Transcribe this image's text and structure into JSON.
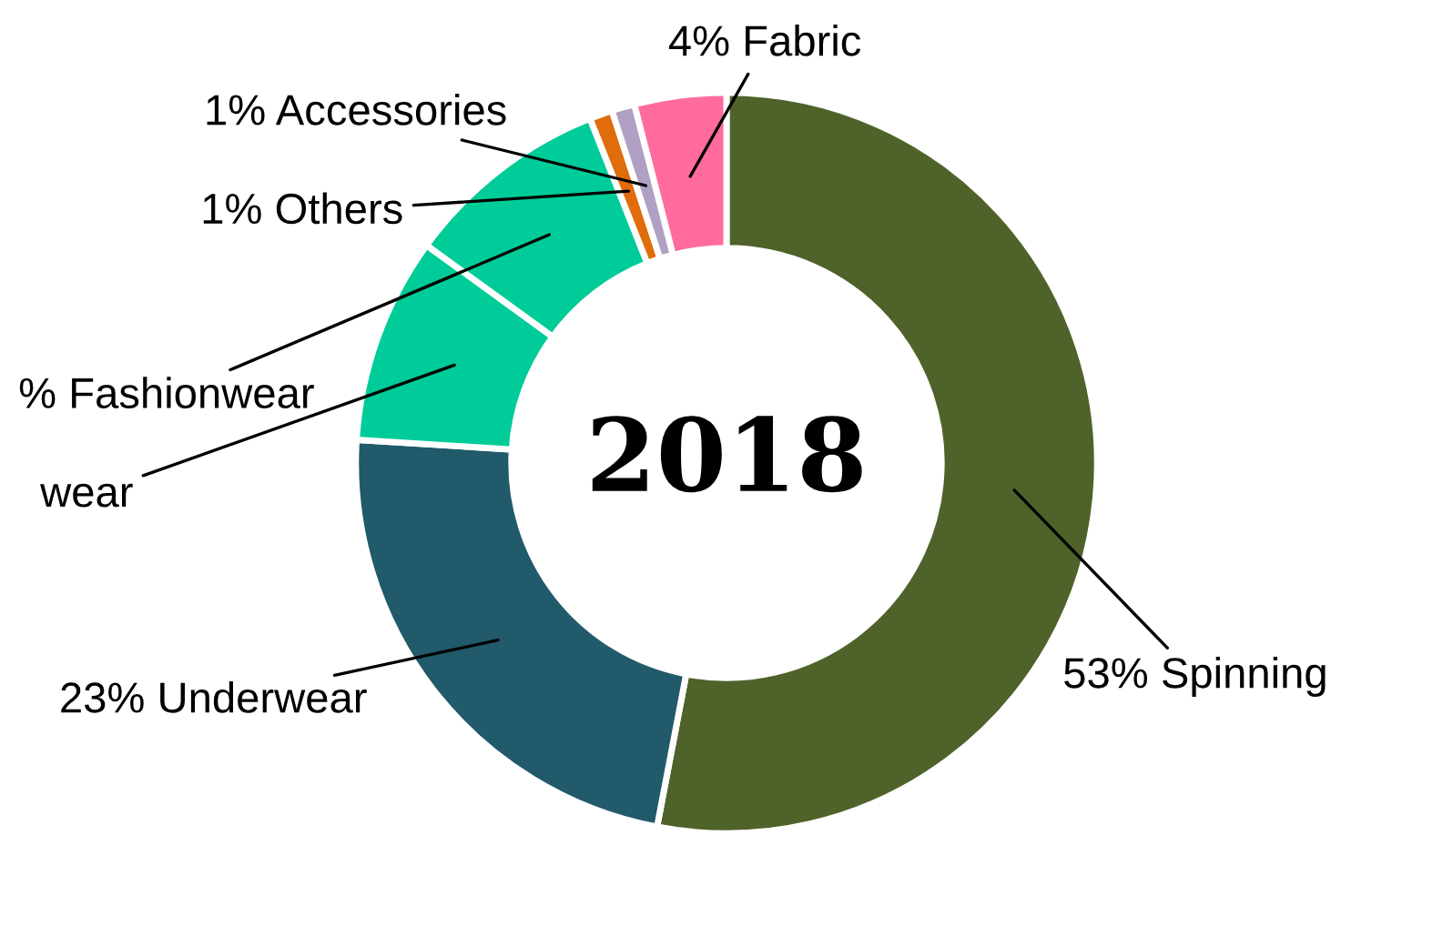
{
  "chart_data": {
    "type": "donut",
    "title": "2018",
    "categories": [
      "53% Spinning",
      "23% Underwear",
      "wear",
      "% Fashionwear",
      "1% Others",
      "1% Accessories",
      "4% Fabric"
    ],
    "values": [
      53,
      23,
      9,
      9,
      1,
      1,
      4
    ],
    "colors": [
      "#4f622a",
      "#215a6a",
      "#00cc99",
      "#00cc99",
      "#e06c0c",
      "#b0a0c4",
      "#ff6b9d"
    ]
  }
}
